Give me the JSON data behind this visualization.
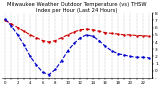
{
  "title": "Milwaukee Weather Outdoor Temperature (vs) THSW Index per Hour (Last 24 Hours)",
  "title_fontsize": 3.8,
  "background_color": "#ffffff",
  "grid_color": "#888888",
  "hours": [
    0,
    1,
    2,
    3,
    4,
    5,
    6,
    7,
    8,
    9,
    10,
    11,
    12,
    13,
    14,
    15,
    16,
    17,
    18,
    19,
    20,
    21,
    22,
    23
  ],
  "temp": [
    70,
    65,
    60,
    55,
    50,
    46,
    42,
    40,
    42,
    46,
    50,
    54,
    57,
    58,
    57,
    55,
    53,
    52,
    51,
    50,
    50,
    49,
    49,
    48
  ],
  "thsw": [
    72,
    62,
    50,
    36,
    20,
    8,
    -2,
    -5,
    2,
    14,
    28,
    38,
    46,
    50,
    48,
    42,
    34,
    28,
    24,
    22,
    20,
    19,
    19,
    18
  ],
  "temp_color": "#cc0000",
  "thsw_color": "#0000cc",
  "ylim": [
    -10,
    80
  ],
  "yticks": [
    80,
    70,
    60,
    50,
    40,
    30,
    20,
    10,
    0,
    -10
  ],
  "ytick_labels": [
    "8",
    "7",
    "6",
    "5",
    "4",
    "3",
    "2",
    "1",
    "0",
    "-"
  ],
  "ytick_fontsize": 3.2,
  "xtick_fontsize": 2.8,
  "line_width": 0.8,
  "marker_size": 1.5
}
